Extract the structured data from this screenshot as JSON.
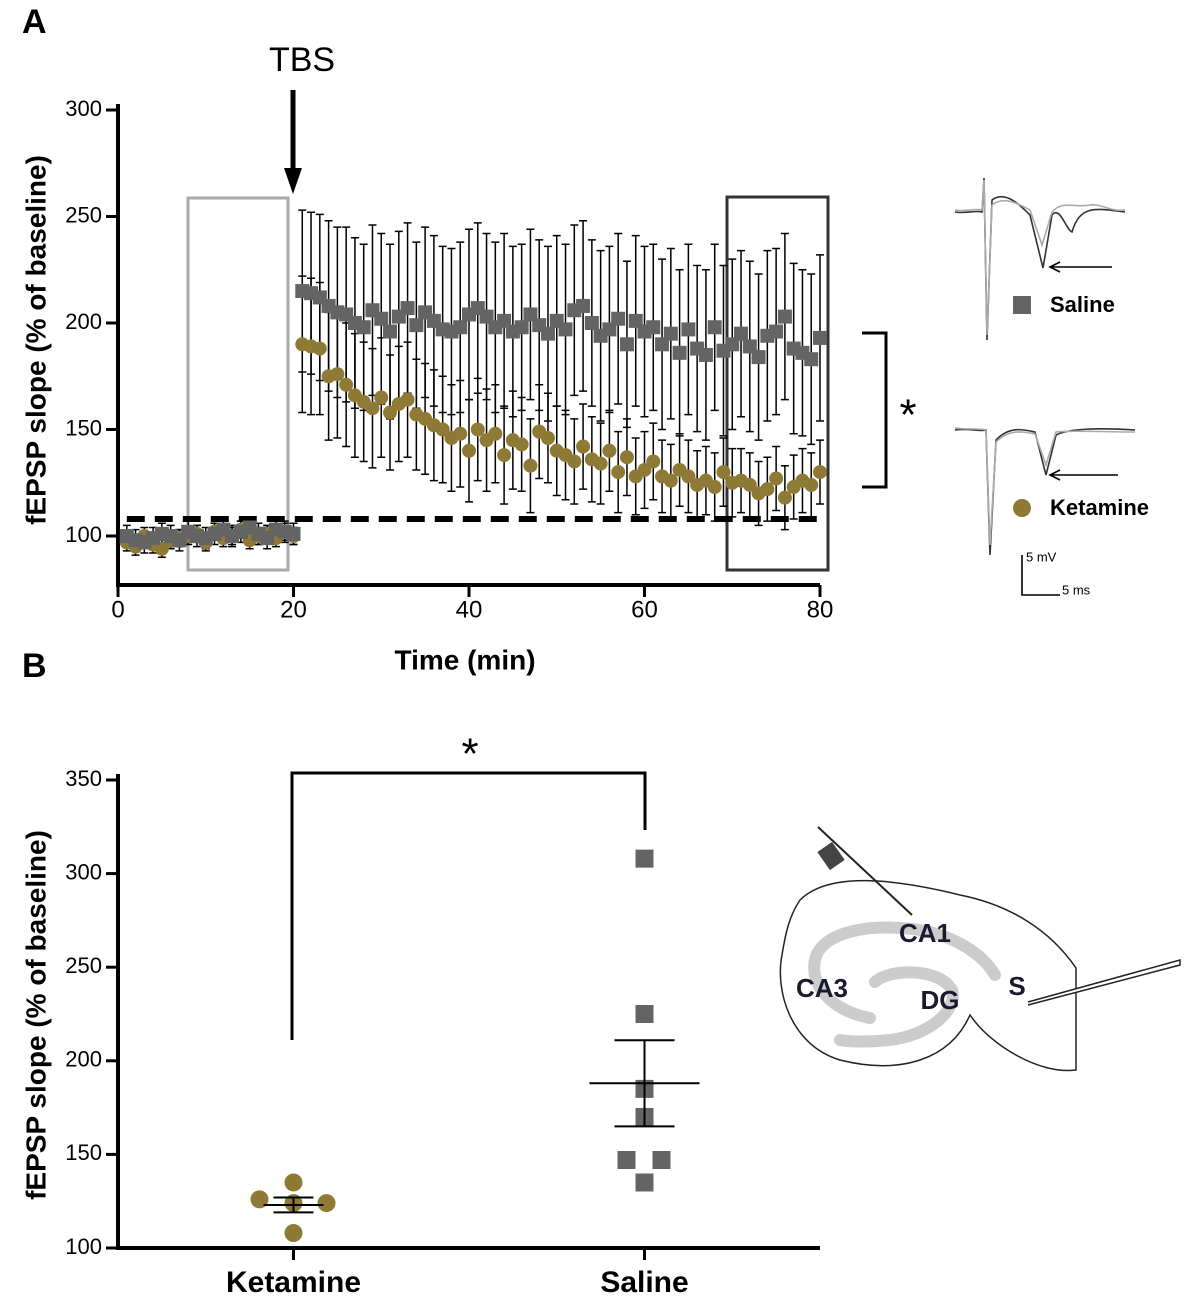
{
  "chart_data": [
    {
      "type": "scatter",
      "panel_label": "A",
      "annotation": "TBS",
      "significance": "*",
      "xlabel": "Time (min)",
      "ylabel": "fEPSP slope  (% of baseline)",
      "xlim": [
        0,
        80
      ],
      "xticks": [
        0,
        20,
        40,
        60,
        80
      ],
      "ylim": [
        77,
        300
      ],
      "yticks": [
        100,
        150,
        200,
        250,
        300
      ],
      "reference_line": 108,
      "x": [
        1,
        2,
        3,
        4,
        5,
        6,
        7,
        8,
        9,
        10,
        11,
        12,
        13,
        14,
        15,
        16,
        17,
        18,
        19,
        20,
        21,
        22,
        23,
        24,
        25,
        26,
        27,
        28,
        29,
        30,
        31,
        32,
        33,
        34,
        35,
        36,
        37,
        38,
        39,
        40,
        41,
        42,
        43,
        44,
        45,
        46,
        47,
        48,
        49,
        50,
        51,
        52,
        53,
        54,
        55,
        56,
        57,
        58,
        59,
        60,
        61,
        62,
        63,
        64,
        65,
        66,
        67,
        68,
        69,
        70,
        71,
        72,
        73,
        74,
        75,
        76,
        77,
        78,
        79,
        80
      ],
      "series": [
        {
          "name": "Ketamine",
          "color": "#8f7a35",
          "marker": "circle",
          "values": [
            97,
            95,
            100,
            96,
            94,
            98,
            99,
            100,
            101,
            97,
            102,
            99,
            100,
            103,
            98,
            100,
            101,
            99,
            102,
            100,
            190,
            189,
            188,
            175,
            176,
            171,
            166,
            163,
            160,
            165,
            158,
            162,
            164,
            157,
            155,
            152,
            150,
            146,
            148,
            140,
            150,
            145,
            148,
            138,
            145,
            143,
            133,
            149,
            146,
            140,
            138,
            135,
            142,
            136,
            134,
            140,
            130,
            137,
            128,
            131,
            135,
            128,
            126,
            131,
            128,
            124,
            126,
            123,
            130,
            125,
            126,
            124,
            120,
            122,
            127,
            118,
            123,
            126,
            124,
            130
          ],
          "errors": [
            4,
            4,
            4,
            4,
            4,
            4,
            4,
            4,
            4,
            4,
            4,
            4,
            4,
            4,
            4,
            4,
            4,
            4,
            4,
            4,
            32,
            32,
            31,
            30,
            30,
            29,
            29,
            28,
            28,
            28,
            27,
            27,
            27,
            26,
            26,
            26,
            25,
            25,
            25,
            24,
            24,
            24,
            23,
            23,
            23,
            22,
            22,
            22,
            21,
            21,
            21,
            20,
            20,
            20,
            19,
            19,
            19,
            18,
            18,
            18,
            18,
            17,
            17,
            17,
            17,
            16,
            16,
            16,
            16,
            16,
            15,
            15,
            15,
            15,
            15,
            15,
            15,
            15,
            15,
            15
          ]
        },
        {
          "name": "Saline",
          "color": "#646464",
          "marker": "square",
          "values": [
            100,
            98,
            97,
            99,
            101,
            100,
            98,
            102,
            100,
            99,
            101,
            103,
            100,
            102,
            104,
            101,
            99,
            103,
            102,
            101,
            215,
            214,
            212,
            208,
            205,
            204,
            200,
            198,
            206,
            202,
            196,
            203,
            207,
            199,
            205,
            201,
            197,
            196,
            198,
            204,
            207,
            203,
            198,
            201,
            196,
            198,
            204,
            199,
            195,
            201,
            197,
            206,
            208,
            200,
            194,
            197,
            202,
            190,
            201,
            196,
            198,
            190,
            195,
            186,
            197,
            188,
            185,
            198,
            187,
            190,
            195,
            189,
            184,
            194,
            196,
            203,
            188,
            186,
            183,
            193
          ],
          "errors": [
            5,
            5,
            5,
            5,
            5,
            5,
            5,
            5,
            5,
            5,
            5,
            5,
            5,
            5,
            5,
            5,
            5,
            5,
            5,
            5,
            38,
            38,
            39,
            40,
            40,
            41,
            40,
            39,
            40,
            40,
            41,
            40,
            40,
            39,
            40,
            40,
            39,
            39,
            40,
            40,
            40,
            39,
            40,
            41,
            40,
            39,
            40,
            40,
            41,
            40,
            40,
            40,
            40,
            39,
            40,
            39,
            40,
            39,
            40,
            40,
            39,
            40,
            40,
            39,
            40,
            39,
            40,
            39,
            40,
            40,
            39,
            40,
            39,
            40,
            39,
            39,
            40,
            39,
            40,
            39
          ]
        }
      ],
      "inset_labels": [
        "5 mV",
        "5 ms"
      ]
    },
    {
      "type": "dot",
      "panel_label": "B",
      "significance": "*",
      "ylabel": "fEPSP slope  (% of baseline)",
      "categories": [
        "Ketamine",
        "Saline"
      ],
      "ylim": [
        100,
        350
      ],
      "yticks": [
        100,
        150,
        200,
        250,
        300,
        350
      ],
      "groups": [
        {
          "color": "#8f7a35",
          "marker": "circle",
          "values": [
            135,
            126,
            124,
            124,
            108
          ],
          "mean": 123,
          "sem": 4
        },
        {
          "color": "#646464",
          "marker": "square",
          "values": [
            308,
            225,
            185,
            170,
            147,
            147,
            135
          ],
          "mean": 188,
          "sem": 23
        }
      ]
    }
  ],
  "diagram": {
    "labels": [
      "CA1",
      "CA3",
      "DG",
      "S"
    ]
  }
}
